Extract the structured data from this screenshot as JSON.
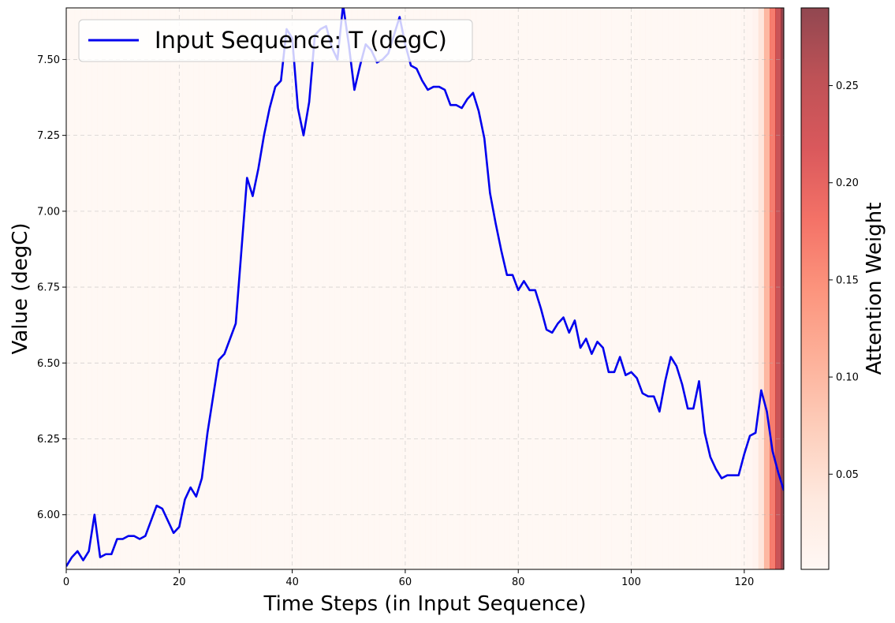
{
  "chart_data": {
    "type": "line",
    "xlabel": "Time Steps (in Input Sequence)",
    "ylabel": "Value (degC)",
    "xlim": [
      0,
      127
    ],
    "ylim": [
      5.82,
      7.67
    ],
    "x_ticks": [
      0,
      20,
      40,
      60,
      80,
      100,
      120
    ],
    "y_ticks": [
      6.0,
      6.25,
      6.5,
      6.75,
      7.0,
      7.25,
      7.5
    ],
    "x_tick_labels": [
      "0",
      "20",
      "40",
      "60",
      "80",
      "100",
      "120"
    ],
    "y_tick_labels": [
      "6.00",
      "6.25",
      "6.50",
      "6.75",
      "7.00",
      "7.25",
      "7.50"
    ],
    "grid": true,
    "legend_position": "top-left",
    "series": [
      {
        "name": "Input Sequence: T (degC)",
        "color": "#0000ee",
        "values": [
          5.83,
          5.86,
          5.88,
          5.85,
          5.88,
          6.0,
          5.86,
          5.87,
          5.87,
          5.92,
          5.92,
          5.93,
          5.93,
          5.92,
          5.93,
          5.98,
          6.03,
          6.02,
          5.98,
          5.94,
          5.96,
          6.05,
          6.09,
          6.06,
          6.12,
          6.27,
          6.39,
          6.51,
          6.53,
          6.58,
          6.63,
          6.87,
          7.11,
          7.05,
          7.14,
          7.25,
          7.34,
          7.41,
          7.43,
          7.6,
          7.57,
          7.34,
          7.25,
          7.36,
          7.58,
          7.6,
          7.61,
          7.54,
          7.5,
          7.68,
          7.55,
          7.4,
          7.48,
          7.55,
          7.53,
          7.49,
          7.5,
          7.52,
          7.58,
          7.64,
          7.55,
          7.48,
          7.47,
          7.43,
          7.4,
          7.41,
          7.41,
          7.4,
          7.35,
          7.35,
          7.34,
          7.37,
          7.39,
          7.33,
          7.24,
          7.06,
          6.96,
          6.87,
          6.79,
          6.79,
          6.74,
          6.77,
          6.74,
          6.74,
          6.68,
          6.61,
          6.6,
          6.63,
          6.65,
          6.6,
          6.64,
          6.55,
          6.58,
          6.53,
          6.57,
          6.55,
          6.47,
          6.47,
          6.52,
          6.46,
          6.47,
          6.45,
          6.4,
          6.39,
          6.39,
          6.34,
          6.44,
          6.52,
          6.49,
          6.43,
          6.35,
          6.35,
          6.44,
          6.27,
          6.19,
          6.15,
          6.12,
          6.13,
          6.13,
          6.13,
          6.2,
          6.26,
          6.27,
          6.41,
          6.34,
          6.21,
          6.14,
          6.08
        ]
      }
    ],
    "attention_weights": [
      0.001,
      0.001,
      0.001,
      0.001,
      0.001,
      0.001,
      0.001,
      0.001,
      0.001,
      0.001,
      0.001,
      0.001,
      0.001,
      0.001,
      0.001,
      0.001,
      0.001,
      0.001,
      0.001,
      0.001,
      0.001,
      0.001,
      0.001,
      0.001,
      0.001,
      0.001,
      0.001,
      0.001,
      0.001,
      0.001,
      0.001,
      0.001,
      0.001,
      0.001,
      0.001,
      0.001,
      0.001,
      0.001,
      0.001,
      0.001,
      0.001,
      0.001,
      0.001,
      0.001,
      0.001,
      0.001,
      0.001,
      0.001,
      0.001,
      0.001,
      0.001,
      0.001,
      0.001,
      0.001,
      0.001,
      0.001,
      0.001,
      0.001,
      0.001,
      0.001,
      0.001,
      0.001,
      0.001,
      0.001,
      0.001,
      0.001,
      0.001,
      0.001,
      0.001,
      0.001,
      0.001,
      0.001,
      0.001,
      0.001,
      0.001,
      0.001,
      0.001,
      0.001,
      0.001,
      0.001,
      0.001,
      0.001,
      0.001,
      0.001,
      0.001,
      0.001,
      0.001,
      0.001,
      0.001,
      0.001,
      0.001,
      0.001,
      0.001,
      0.001,
      0.001,
      0.001,
      0.001,
      0.001,
      0.001,
      0.001,
      0.001,
      0.001,
      0.001,
      0.001,
      0.001,
      0.001,
      0.001,
      0.001,
      0.001,
      0.001,
      0.001,
      0.001,
      0.001,
      0.001,
      0.001,
      0.001,
      0.001,
      0.001,
      0.001,
      0.001,
      0.002,
      0.005,
      0.012,
      0.04,
      0.1,
      0.17,
      0.24,
      0.29
    ],
    "colorbar": {
      "label": "Attention Weight",
      "min": 0.001,
      "max": 0.29,
      "ticks": [
        0.05,
        0.1,
        0.15,
        0.2,
        0.25
      ],
      "tick_labels": [
        "0.05",
        "0.10",
        "0.15",
        "0.20",
        "0.25"
      ],
      "colormap": "Reds"
    }
  }
}
